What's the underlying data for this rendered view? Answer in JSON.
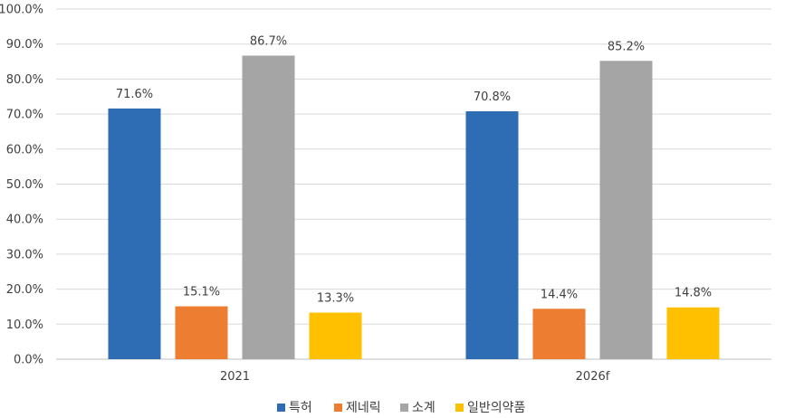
{
  "chart_data": {
    "type": "bar",
    "categories": [
      "2021",
      "2026f"
    ],
    "series": [
      {
        "name": "특허",
        "values": [
          71.6,
          70.8
        ],
        "color": "#2E6DB4",
        "labels": [
          "71.6%",
          "70.8%"
        ]
      },
      {
        "name": "제네릭",
        "values": [
          15.1,
          14.4
        ],
        "color": "#ED7D31",
        "labels": [
          "15.1%",
          "14.4%"
        ]
      },
      {
        "name": "소계",
        "values": [
          86.7,
          85.2
        ],
        "color": "#A5A5A5",
        "labels": [
          "86.7%",
          "85.2%"
        ]
      },
      {
        "name": "일반의약품",
        "values": [
          13.3,
          14.8
        ],
        "color": "#FFC000",
        "labels": [
          "13.3%",
          "14.8%"
        ]
      }
    ],
    "yticks": [
      "0.0%",
      "10.0%",
      "20.0%",
      "30.0%",
      "40.0%",
      "50.0%",
      "60.0%",
      "70.0%",
      "80.0%",
      "90.0%",
      "100.0%"
    ],
    "ylim": [
      0,
      100
    ],
    "grid": true,
    "legend": "bottom"
  }
}
